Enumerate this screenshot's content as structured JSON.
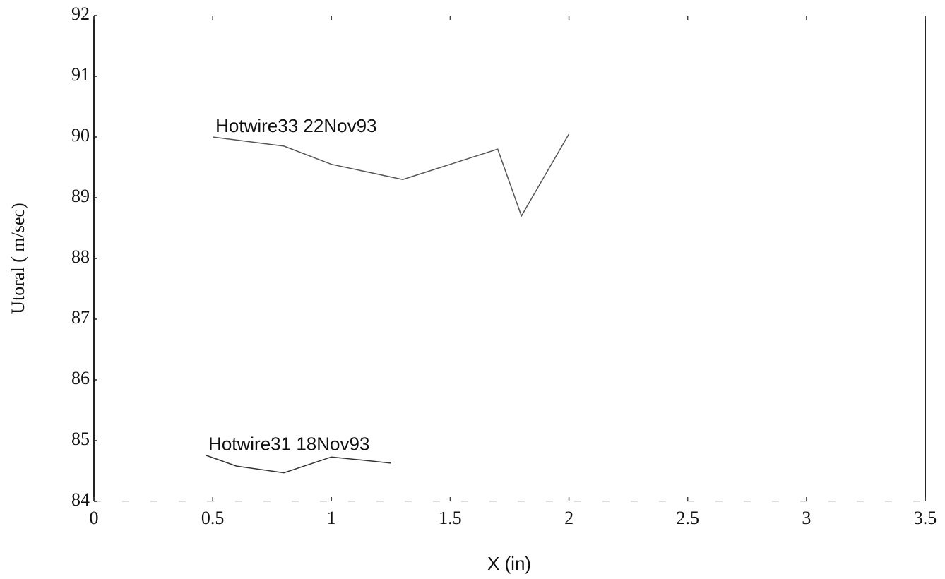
{
  "chart_data": {
    "type": "line",
    "xlabel": "X (in)",
    "ylabel": "Utoral ( m/sec)",
    "xlim": [
      0,
      3.5
    ],
    "xticks": [
      0,
      0.5,
      1,
      1.5,
      2,
      2.5,
      3,
      3.5
    ],
    "ylim": [
      84,
      92
    ],
    "yticks": [
      84,
      85,
      86,
      87,
      88,
      89,
      90,
      91,
      92
    ],
    "grid": false,
    "series": [
      {
        "name": "Hotwire33 22Nov93",
        "color": "#555555",
        "x": [
          0.5,
          0.8,
          1.0,
          1.3,
          1.7,
          1.8,
          2.0
        ],
        "values": [
          90.0,
          89.85,
          89.55,
          89.3,
          89.8,
          88.7,
          90.05
        ]
      },
      {
        "name": "Hotwire31 18Nov93",
        "color": "#333333",
        "x": [
          0.47,
          0.6,
          0.8,
          1.0,
          1.25
        ],
        "values": [
          84.76,
          84.58,
          84.47,
          84.73,
          84.63
        ]
      }
    ]
  }
}
